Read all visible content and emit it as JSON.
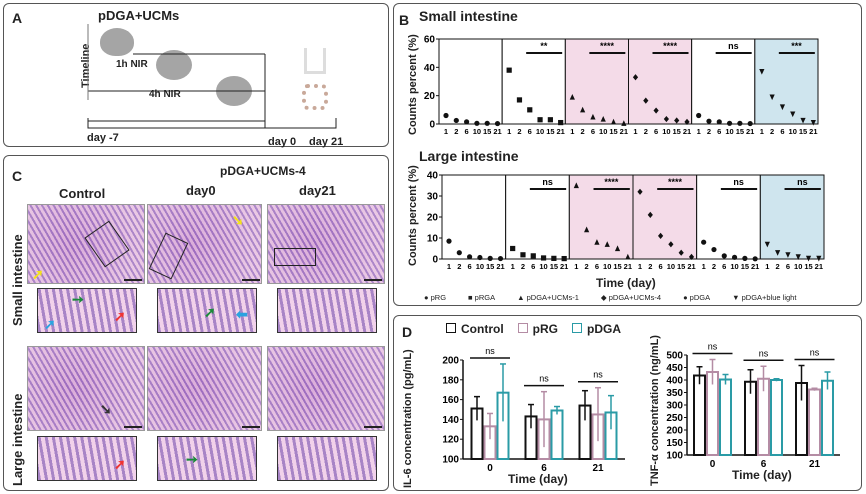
{
  "panelA": {
    "label": "A",
    "title": "pDGA+UCMs",
    "timeline": "Timeline",
    "nir1": "1h NIR",
    "nir4": "4h NIR",
    "day_start": "day -7",
    "day0": "day 0",
    "day21": "day 21"
  },
  "panelC": {
    "label": "C",
    "group_title": "pDGA+UCMs-4",
    "cols": [
      "Control",
      "day0",
      "day21"
    ],
    "rows": [
      "Small intestine",
      "Large intestine"
    ]
  },
  "chart_data": [
    {
      "type": "scatter",
      "panel": "B",
      "title": "Small intestine",
      "ylabel": "Counts percent (%)",
      "xlabel": "Time (day)",
      "ylim": [
        0,
        60
      ],
      "yticks": [
        0,
        20,
        40,
        60
      ],
      "x": [
        "1",
        "2",
        "6",
        "10",
        "15",
        "21"
      ],
      "groups": [
        {
          "name": "pRG",
          "values": [
            6,
            2.5,
            1.5,
            0.5,
            0.5,
            0.3
          ],
          "sig": "",
          "shade": "#ffffff",
          "marker": "circle"
        },
        {
          "name": "pRGA",
          "values": [
            38,
            17,
            10,
            3,
            3,
            1
          ],
          "sig": "**",
          "shade": "#ffffff",
          "marker": "square"
        },
        {
          "name": "pDGA+UCMs-1",
          "values": [
            19,
            10,
            5,
            3.5,
            1.5,
            0.5
          ],
          "sig": "****",
          "shade": "#f4dbe8",
          "marker": "triangle"
        },
        {
          "name": "pDGA+UCMs-4",
          "values": [
            33,
            16.5,
            9.5,
            3.5,
            2.5,
            1.5
          ],
          "sig": "****",
          "shade": "#f4dbe8",
          "marker": "diamond"
        },
        {
          "name": "pDGA",
          "values": [
            6,
            2,
            1.5,
            0.5,
            0.5,
            0.3
          ],
          "sig": "ns",
          "shade": "#ffffff",
          "marker": "circle"
        },
        {
          "name": "pDGA+blue light",
          "values": [
            37,
            19,
            12,
            7,
            2.5,
            1
          ],
          "sig": "***",
          "shade": "#cfe5ee",
          "marker": "down-triangle"
        }
      ]
    },
    {
      "type": "scatter",
      "panel": "B",
      "title": "Large intestine",
      "ylabel": "Counts percent (%)",
      "xlabel": "Time (day)",
      "ylim": [
        0,
        40
      ],
      "yticks": [
        0,
        10,
        20,
        30,
        40
      ],
      "x": [
        "1",
        "2",
        "6",
        "10",
        "15",
        "21"
      ],
      "groups": [
        {
          "name": "pRG",
          "values": [
            8.5,
            3,
            1,
            0.7,
            0.3,
            0.2
          ],
          "sig": "",
          "shade": "#ffffff",
          "marker": "circle"
        },
        {
          "name": "pRGA",
          "values": [
            5,
            2,
            1.5,
            0.5,
            0.3,
            0.2
          ],
          "sig": "ns",
          "shade": "#ffffff",
          "marker": "square"
        },
        {
          "name": "pDGA+UCMs-1",
          "values": [
            35,
            14,
            8,
            7,
            5,
            1
          ],
          "sig": "****",
          "shade": "#f4dbe8",
          "marker": "triangle"
        },
        {
          "name": "pDGA+UCMs-4",
          "values": [
            32,
            21,
            11,
            7,
            3,
            1
          ],
          "sig": "****",
          "shade": "#f4dbe8",
          "marker": "diamond"
        },
        {
          "name": "pDGA",
          "values": [
            8,
            4.5,
            1.5,
            0.8,
            0.3,
            0.1
          ],
          "sig": "ns",
          "shade": "#ffffff",
          "marker": "circle"
        },
        {
          "name": "pDGA+blue light",
          "values": [
            7,
            3,
            2,
            1,
            0.3,
            0.3
          ],
          "sig": "ns",
          "shade": "#cfe5ee",
          "marker": "down-triangle"
        }
      ]
    },
    {
      "type": "bar",
      "panel": "D",
      "ylabel": "IL-6 concentration (pg/mL)",
      "xlabel": "Time (day)",
      "ylim": [
        100,
        200
      ],
      "yticks": [
        100,
        120,
        140,
        160,
        180,
        200
      ],
      "categories": [
        "0",
        "6",
        "21"
      ],
      "sig": [
        "ns",
        "ns",
        "ns"
      ],
      "series": [
        {
          "name": "Control",
          "color": "#111111",
          "values": [
            151,
            143,
            154
          ],
          "err": [
            12,
            12,
            15
          ]
        },
        {
          "name": "pRG",
          "color": "#b48ca4",
          "values": [
            133,
            140,
            145
          ],
          "err": [
            13,
            28,
            27
          ]
        },
        {
          "name": "pDGA",
          "color": "#2a9ba6",
          "values": [
            167,
            149,
            147
          ],
          "err": [
            29,
            4,
            17
          ]
        }
      ]
    },
    {
      "type": "bar",
      "panel": "D",
      "ylabel": "TNF-α concentration (ng/mL)",
      "xlabel": "Time (day)",
      "ylim": [
        100,
        500
      ],
      "yticks": [
        100,
        150,
        200,
        250,
        300,
        350,
        400,
        450,
        500
      ],
      "categories": [
        "0",
        "6",
        "21"
      ],
      "sig": [
        "ns",
        "ns",
        "ns"
      ],
      "series": [
        {
          "name": "Control",
          "color": "#111111",
          "values": [
            418,
            393,
            388
          ],
          "err": [
            35,
            48,
            70
          ]
        },
        {
          "name": "pRG",
          "color": "#b48ca4",
          "values": [
            432,
            405,
            362
          ],
          "err": [
            50,
            50,
            5
          ]
        },
        {
          "name": "pDGA",
          "color": "#2a9ba6",
          "values": [
            402,
            400,
            397
          ],
          "err": [
            20,
            5,
            35
          ]
        }
      ]
    }
  ],
  "panelB": {
    "label": "B"
  },
  "panelD": {
    "label": "D",
    "legend": [
      "Control",
      "pRG",
      "pDGA"
    ]
  }
}
